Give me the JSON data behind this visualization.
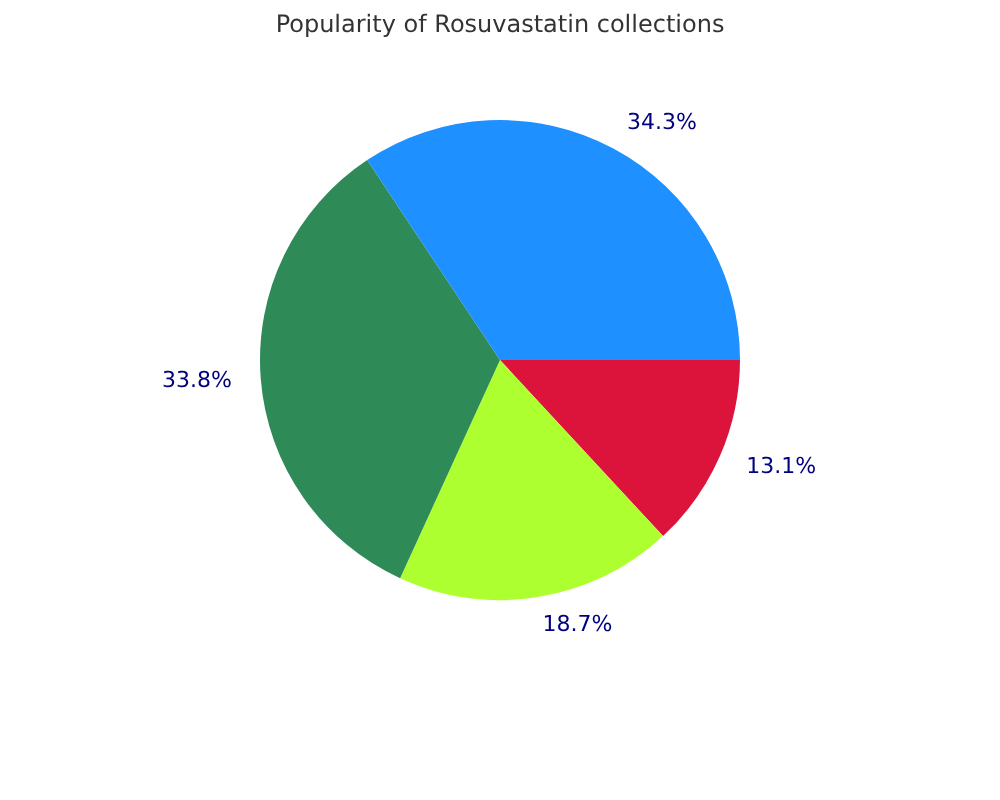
{
  "chart_data": {
    "type": "pie",
    "title": "Popularity of Rosuvastatin collections",
    "categories": [
      null,
      null,
      null,
      null
    ],
    "values": [
      13.1,
      18.7,
      33.8,
      34.3
    ],
    "colors": [
      "#dc143c",
      "#adff2f",
      "#2e8b57",
      "#1e90ff"
    ],
    "value_labels": [
      "13.1%",
      "18.7%",
      "33.8%",
      "34.3%"
    ],
    "legend": false
  }
}
